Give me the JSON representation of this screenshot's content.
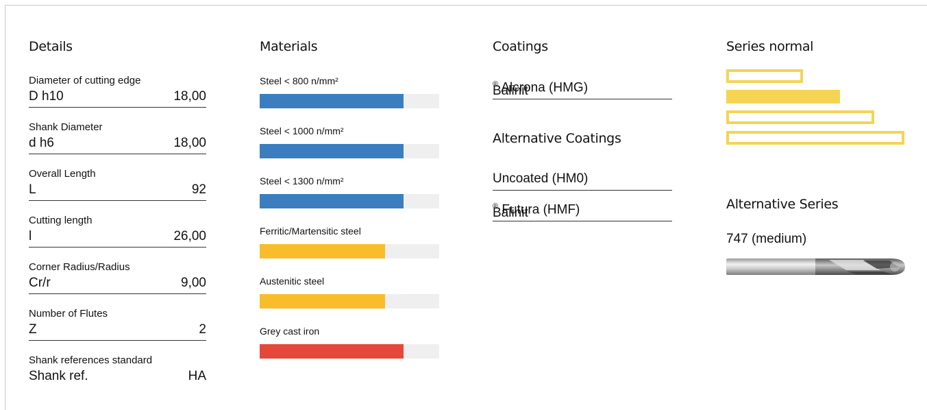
{
  "details": {
    "title": "Details",
    "rows": [
      {
        "label": "Diameter of cutting edge",
        "symbol": "D h10",
        "value": "18,00"
      },
      {
        "label": "Shank Diameter",
        "symbol": "d h6",
        "value": "18,00"
      },
      {
        "label": "Overall Length",
        "symbol": "L",
        "value": "92"
      },
      {
        "label": "Cutting length",
        "symbol": "l",
        "value": "26,00"
      },
      {
        "label": "Corner Radius/Radius",
        "symbol": "Cr/r",
        "value": "9,00"
      },
      {
        "label": "Number of Flutes",
        "symbol": "Z",
        "value": "2"
      },
      {
        "label": "Shank references standard",
        "symbol": "Shank ref.",
        "value": "HA"
      }
    ]
  },
  "materials": {
    "title": "Materials",
    "items": [
      {
        "label": "Steel < 800 n/mm²",
        "level": 0.8,
        "color": "#3a7ebf"
      },
      {
        "label": "Steel < 1000 n/mm²",
        "level": 0.8,
        "color": "#3a7ebf"
      },
      {
        "label": "Steel < 1300 n/mm²",
        "level": 0.8,
        "color": "#3a7ebf"
      },
      {
        "label": "Ferritic/Martensitic steel",
        "level": 0.7,
        "color": "#f9bd2b"
      },
      {
        "label": "Austenitic steel",
        "level": 0.7,
        "color": "#f9bd2b"
      },
      {
        "label": "Grey cast iron",
        "level": 0.8,
        "color": "#e5483a"
      }
    ]
  },
  "coatings": {
    "title": "Coatings",
    "primary": {
      "name": "Balinit",
      "mark": "®",
      "suffix": " Alcrona (HMG)"
    },
    "alternative_title": "Alternative Coatings",
    "alternatives": [
      {
        "name": "Uncoated (HM0)",
        "mark": "",
        "suffix": ""
      },
      {
        "name": "Balinit",
        "mark": "®",
        "suffix": " Futura (HMF)"
      }
    ]
  },
  "series": {
    "title": "Series normal",
    "bars": [
      {
        "level": 0.43,
        "filled": false
      },
      {
        "level": 0.64,
        "filled": true
      },
      {
        "level": 0.83,
        "filled": false
      },
      {
        "level": 1.0,
        "filled": false
      }
    ],
    "bar_color": "#f5d454",
    "alternative_title": "Alternative Series",
    "alternative_value": "747 (medium)",
    "tool_icon": "ball-end-mill-icon"
  }
}
